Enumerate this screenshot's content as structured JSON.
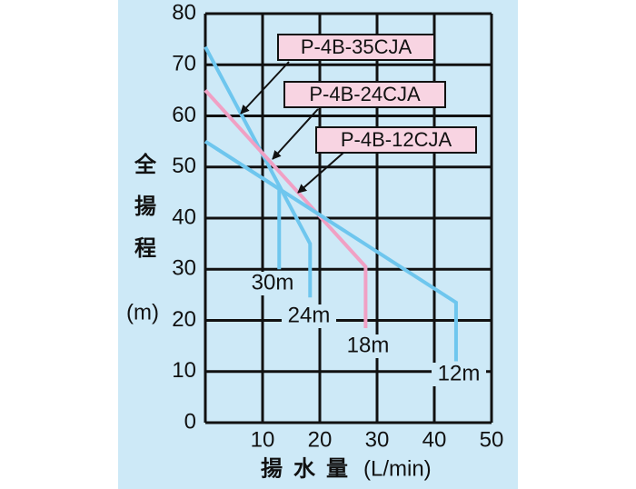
{
  "chart_data": {
    "type": "line",
    "xlabel": "揚水量",
    "xunit": "(L/min)",
    "ylabel": "全揚程",
    "yunit": "(m)",
    "xlim": [
      0,
      50
    ],
    "xticks": [
      10,
      20,
      30,
      40,
      50
    ],
    "ylim": [
      0,
      80
    ],
    "yticks": [
      0,
      10,
      20,
      30,
      40,
      50,
      60,
      70,
      80
    ],
    "grid": true,
    "series": [
      {
        "name": "30m",
        "color": "#6ec6ee",
        "x": [
          0,
          12.9,
          12.9
        ],
        "values": [
          55,
          45.7,
          30
        ]
      },
      {
        "name": "24m",
        "color": "#6ec6ee",
        "x": [
          0,
          18.3,
          18.3
        ],
        "values": [
          73.5,
          35,
          24.5
        ]
      },
      {
        "name": "18m",
        "color": "#f0a0c4",
        "x": [
          0,
          28,
          28
        ],
        "values": [
          65,
          30.5,
          18.5
        ]
      },
      {
        "name": "12m",
        "color": "#6ec6ee",
        "x": [
          0,
          43.8,
          43.8
        ],
        "values": [
          55,
          23.5,
          12
        ]
      }
    ],
    "annotations": [
      "P-4B-35CJA",
      "P-4B-24CJA",
      "P-4B-12CJA"
    ]
  }
}
